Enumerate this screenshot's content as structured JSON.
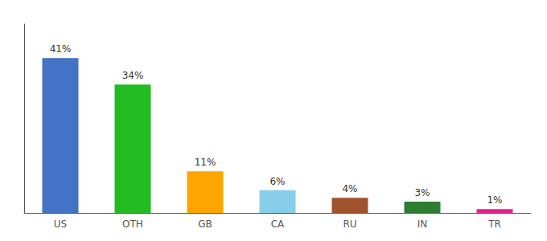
{
  "chart_data": {
    "type": "bar",
    "categories": [
      "US",
      "OTH",
      "GB",
      "CA",
      "RU",
      "IN",
      "TR"
    ],
    "values": [
      41,
      34,
      11,
      6,
      4,
      3,
      1
    ],
    "value_labels": [
      "41%",
      "34%",
      "11%",
      "6%",
      "4%",
      "3%",
      "1%"
    ],
    "colors": [
      "#4472C4",
      "#22BB22",
      "#FFA500",
      "#87CEEB",
      "#A0522D",
      "#2E7D32",
      "#E91E8C"
    ],
    "ylim": [
      0,
      50
    ],
    "grid": false,
    "data_labels": true,
    "tick_labels": "x"
  }
}
